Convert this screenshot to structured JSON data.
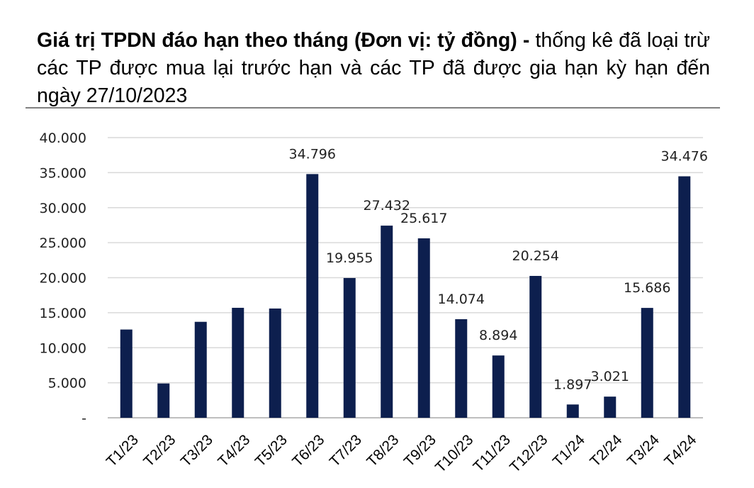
{
  "title": {
    "bold": "Giá trị TPDN đáo hạn theo tháng (Đơn vị: tỷ đồng) -",
    "normal": " thống kê đã loại trừ các TP được mua lại trước hạn và các TP đã được gia hạn kỳ hạn đến ngày 27/10/2023"
  },
  "chart_data": {
    "type": "bar",
    "categories": [
      "T1/23",
      "T2/23",
      "T3/23",
      "T4/23",
      "T5/23",
      "T6/23",
      "T7/23",
      "T8/23",
      "T9/23",
      "T10/23",
      "T11/23",
      "T12/23",
      "T1/24",
      "T2/24",
      "T3/24",
      "T4/24"
    ],
    "values": [
      12600,
      4900,
      13700,
      15700,
      15600,
      34796,
      19955,
      27432,
      25617,
      14074,
      8894,
      20254,
      1897,
      3021,
      15686,
      34476
    ],
    "data_labels": [
      "",
      "",
      "",
      "",
      "",
      "34.796",
      "19.955",
      "27.432",
      "25.617",
      "14.074",
      "8.894",
      "20.254",
      "1.897",
      "3.021",
      "15.686",
      "34.476"
    ],
    "y_ticks": [
      0,
      5000,
      10000,
      15000,
      20000,
      25000,
      30000,
      35000,
      40000
    ],
    "y_tick_labels": [
      "-",
      "5.000",
      "10.000",
      "15.000",
      "20.000",
      "25.000",
      "30.000",
      "35.000",
      "40.000"
    ],
    "ylim": [
      0,
      40000
    ],
    "grid": true,
    "bar_color": "#0d1f4e",
    "grid_color": "#d9d9d9",
    "axis_color": "#bfbfbf"
  }
}
